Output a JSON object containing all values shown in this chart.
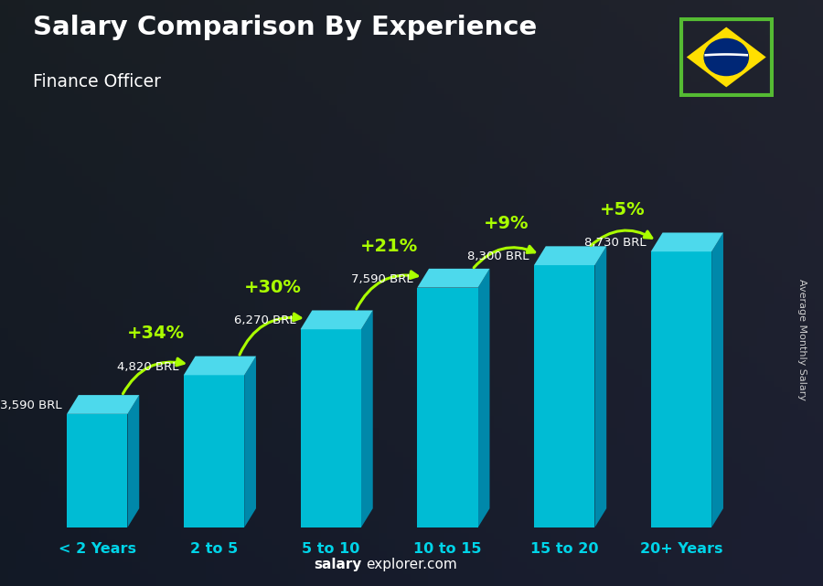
{
  "title": "Salary Comparison By Experience",
  "subtitle": "Finance Officer",
  "categories": [
    "< 2 Years",
    "2 to 5",
    "5 to 10",
    "10 to 15",
    "15 to 20",
    "20+ Years"
  ],
  "values": [
    3590,
    4820,
    6270,
    7590,
    8300,
    8730
  ],
  "value_labels": [
    "3,590 BRL",
    "4,820 BRL",
    "6,270 BRL",
    "7,590 BRL",
    "8,300 BRL",
    "8,730 BRL"
  ],
  "pct_labels": [
    "+34%",
    "+30%",
    "+21%",
    "+9%",
    "+5%"
  ],
  "bar_color_front": "#00bcd4",
  "bar_color_top": "#4dd9ec",
  "bar_color_side": "#0088aa",
  "bg_dark": "#1a2535",
  "title_color": "#ffffff",
  "subtitle_color": "#ffffff",
  "value_label_color": "#ffffff",
  "pct_color": "#aaff00",
  "xlabel_color": "#00d4e8",
  "footer_bold": "salary",
  "footer_regular": "explorer.com",
  "ylabel_text": "Average Monthly Salary",
  "ylim_max": 11500,
  "flag_green": "#009c3b",
  "flag_yellow": "#FFDF00",
  "flag_blue": "#002776",
  "flag_border": "#55bb33"
}
